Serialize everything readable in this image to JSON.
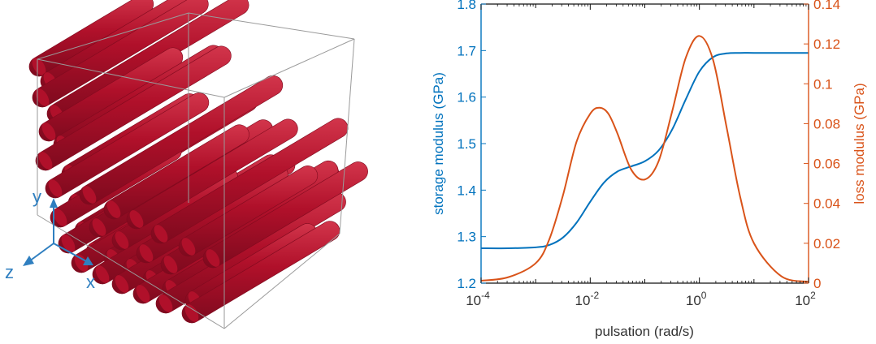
{
  "colors": {
    "fiber": "#b0102a",
    "fiber_dark": "#7e0a1e",
    "fiber_light": "#d2354b",
    "box": "#9a9a9a",
    "axis_triad": "#2f7fc0",
    "storage": "#0072bd",
    "loss": "#d95319",
    "axis_black": "#111111"
  },
  "left_panel": {
    "axis_labels": {
      "y": "y",
      "z": "z",
      "x": "x"
    }
  },
  "chart_data": {
    "type": "line",
    "xscale": "log",
    "xlabel": "pulsation (rad/s)",
    "xlim": [
      0.0001,
      100
    ],
    "x_ticks": [
      {
        "base": "10",
        "exp": "-4"
      },
      {
        "base": "10",
        "exp": "-2"
      },
      {
        "base": "10",
        "exp": "0"
      },
      {
        "base": "10",
        "exp": "2"
      }
    ],
    "y_left": {
      "label": "storage modulus (GPa)",
      "lim": [
        1.2,
        1.8
      ],
      "ticks": [
        "1.2",
        "1.3",
        "1.4",
        "1.5",
        "1.6",
        "1.7",
        "1.8"
      ],
      "color": "#0072bd"
    },
    "y_right": {
      "label": "loss modulus (GPa)",
      "lim": [
        0,
        0.14
      ],
      "ticks": [
        "0",
        "0.02",
        "0.04",
        "0.06",
        "0.08",
        "0.1",
        "0.12",
        "0.14"
      ],
      "color": "#d95319"
    },
    "grid": false,
    "legend": "none",
    "series": [
      {
        "axis": "left",
        "color": "#0072bd",
        "x": [
          0.0001,
          0.000316,
          0.001,
          0.00178,
          0.00316,
          0.00562,
          0.01,
          0.0178,
          0.0316,
          0.0562,
          0.1,
          0.178,
          0.316,
          0.562,
          1,
          1.78,
          3.16,
          5.62,
          10,
          31.6,
          100
        ],
        "y": [
          1.275,
          1.275,
          1.277,
          1.282,
          1.298,
          1.33,
          1.375,
          1.416,
          1.44,
          1.451,
          1.462,
          1.485,
          1.53,
          1.595,
          1.655,
          1.686,
          1.694,
          1.695,
          1.695,
          1.695,
          1.695
        ]
      },
      {
        "axis": "right",
        "color": "#d95319",
        "x": [
          0.0001,
          0.000316,
          0.001,
          0.00178,
          0.00316,
          0.00562,
          0.01,
          0.0147,
          0.0215,
          0.0316,
          0.0562,
          0.1,
          0.178,
          0.316,
          0.562,
          1,
          1.78,
          3.16,
          5.62,
          10,
          31.6,
          100
        ],
        "y": [
          0.0012,
          0.003,
          0.01,
          0.022,
          0.044,
          0.071,
          0.085,
          0.088,
          0.085,
          0.075,
          0.057,
          0.052,
          0.061,
          0.086,
          0.113,
          0.124,
          0.112,
          0.078,
          0.043,
          0.02,
          0.0035,
          0.0007
        ]
      }
    ]
  }
}
